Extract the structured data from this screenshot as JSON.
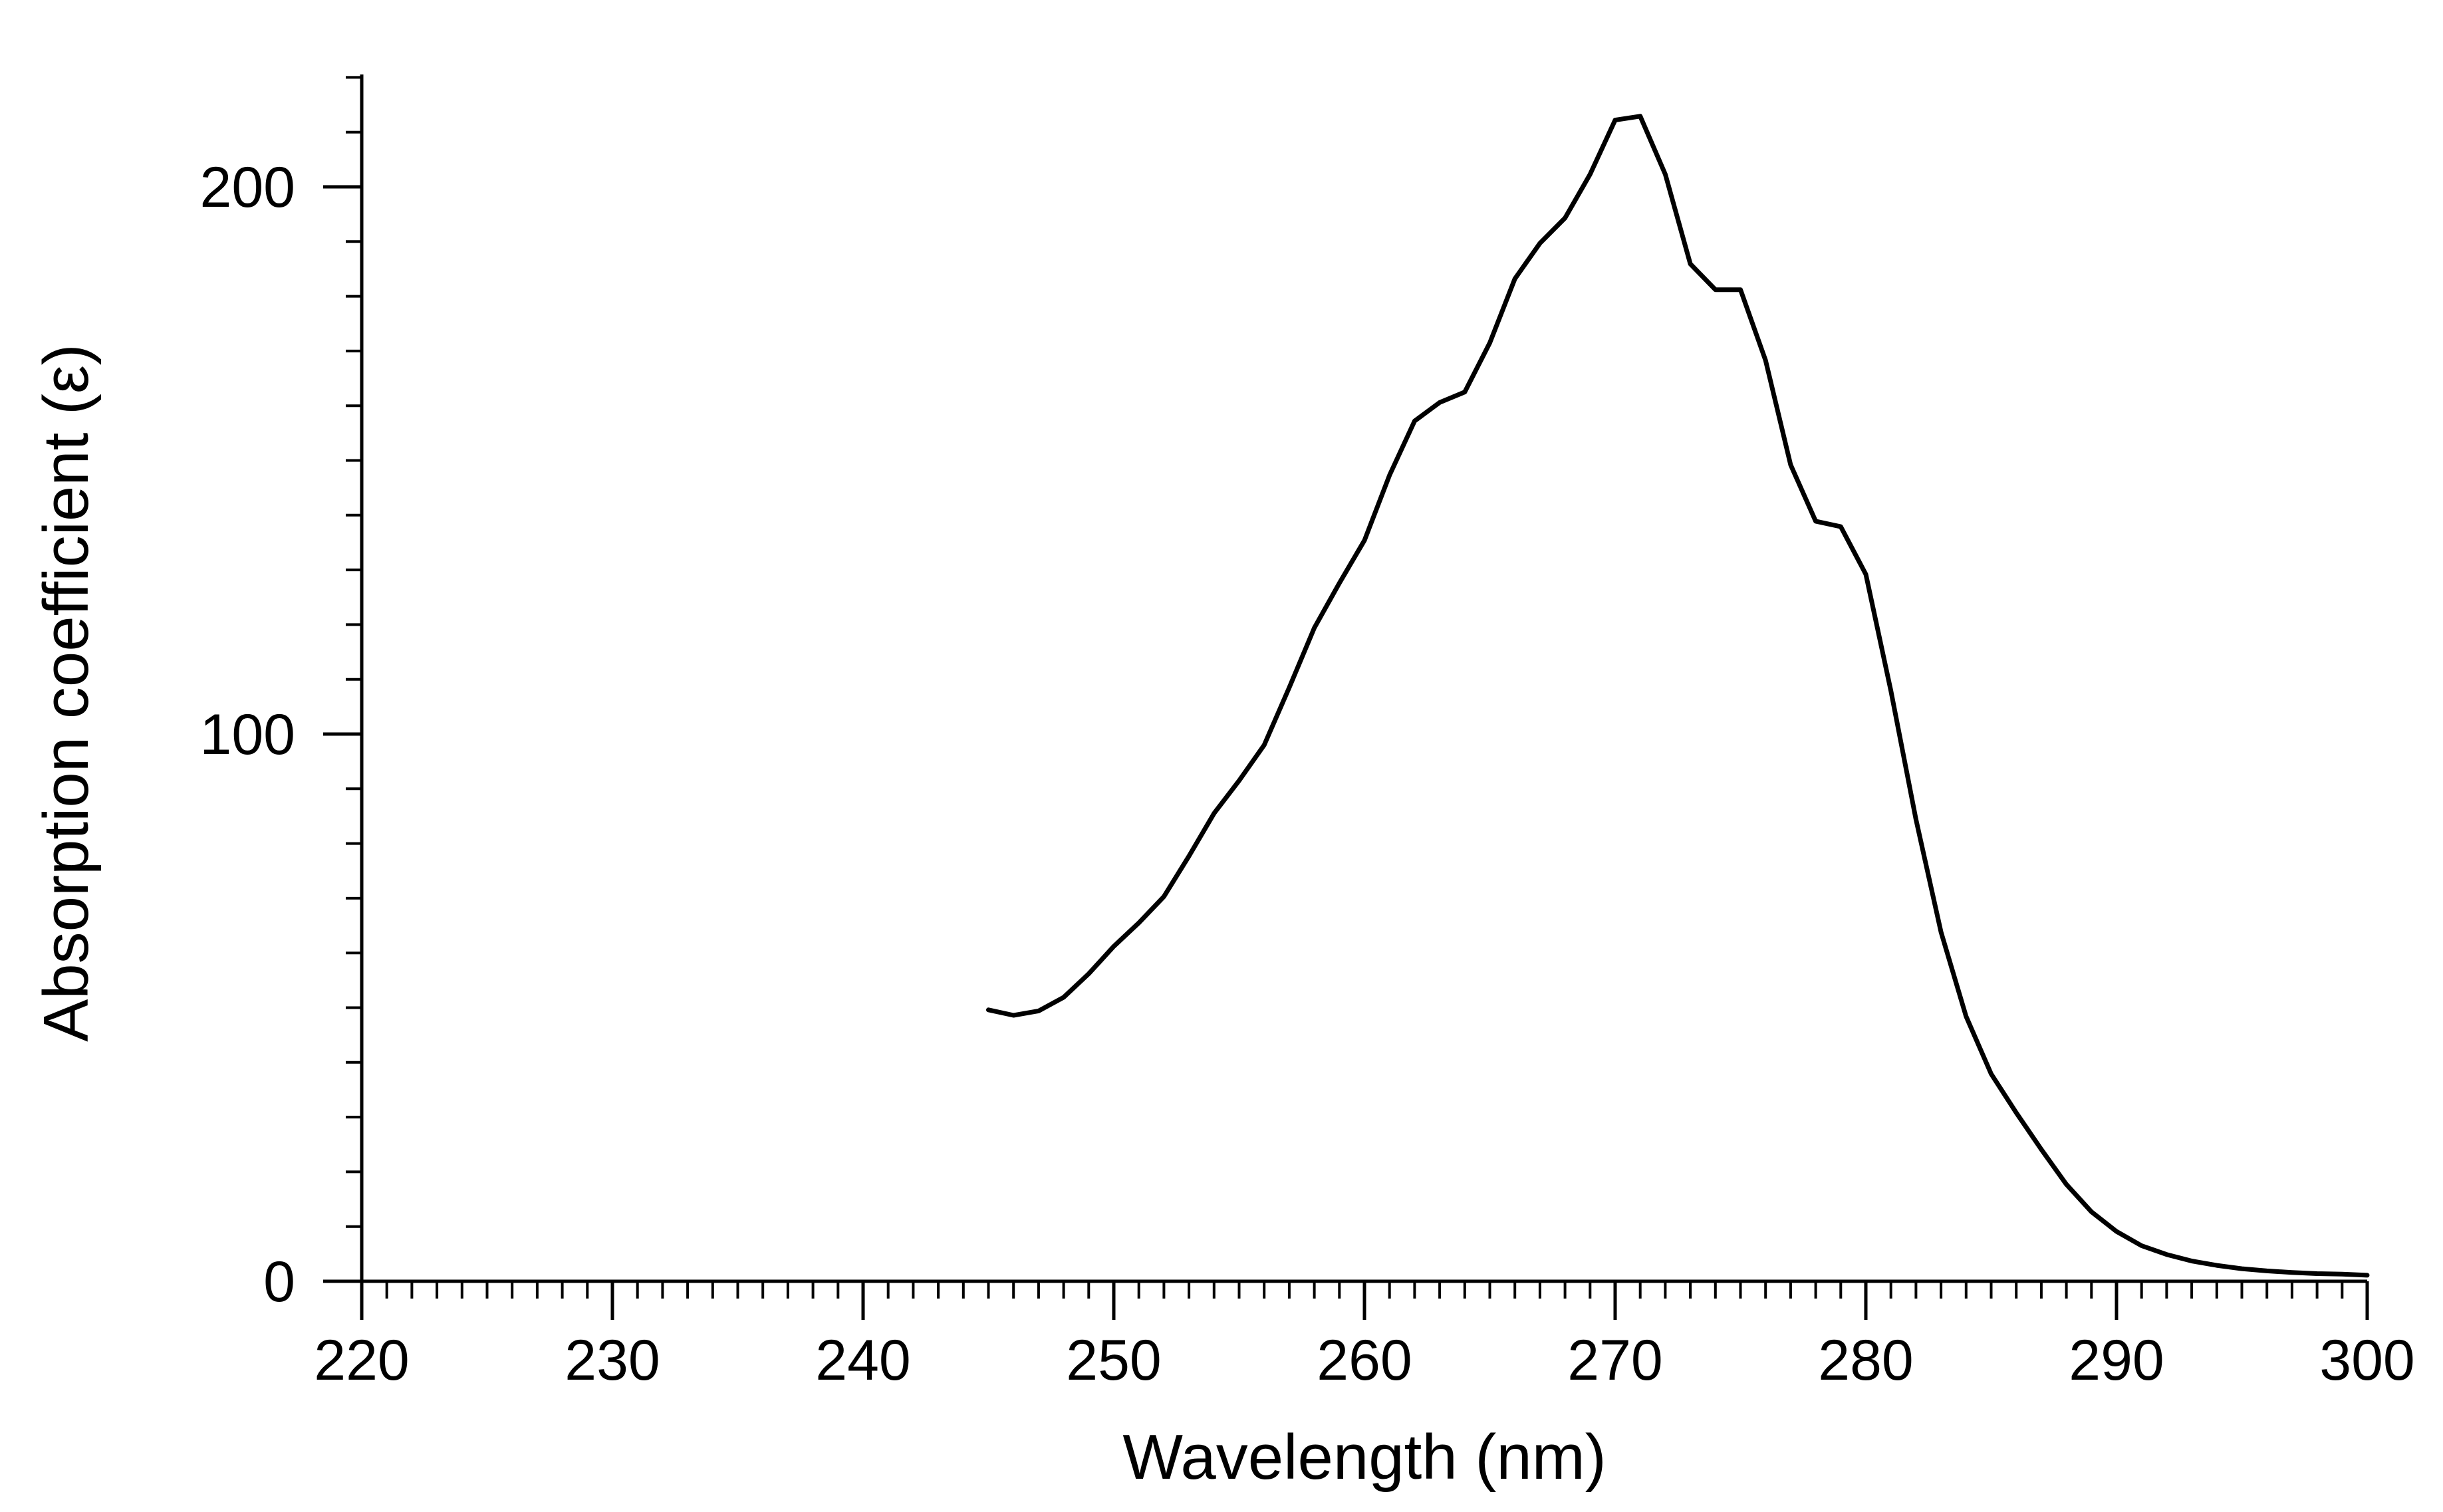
{
  "chart_data": {
    "type": "line",
    "title": "",
    "xlabel": "Wavelength (nm)",
    "ylabel": "Absorption coefficient (ε)",
    "xlim": [
      220,
      300
    ],
    "ylim": [
      0,
      220
    ],
    "x_ticks": [
      220,
      230,
      240,
      250,
      260,
      270,
      280,
      290,
      300
    ],
    "y_ticks": [
      0,
      100,
      200
    ],
    "x_minor_step": 1,
    "y_minor_step": 10,
    "grid": false,
    "legend": "none",
    "line_color": "#000000",
    "series": [
      {
        "x": [
          245,
          246,
          247,
          248,
          249,
          250,
          251,
          252,
          253,
          254,
          255,
          256,
          257,
          258,
          259,
          260,
          261,
          262,
          263,
          264,
          265,
          266,
          267,
          268,
          269,
          270,
          271,
          272,
          273,
          274,
          275,
          276,
          277,
          278,
          279,
          280,
          281,
          282,
          283,
          284,
          285,
          286,
          287,
          288,
          289,
          290,
          291,
          292,
          293,
          294,
          295,
          296,
          297,
          298,
          299,
          300
        ],
        "y": [
          49.6,
          48.6,
          49.4,
          51.9,
          56.2,
          61.2,
          65.5,
          70.3,
          77.7,
          85.5,
          91.5,
          98.0,
          108.5,
          119.4,
          127.6,
          135.4,
          147.3,
          157.2,
          160.6,
          162.5,
          171.5,
          183.2,
          189.7,
          194.3,
          202.3,
          212.2,
          212.9,
          202.3,
          185.9,
          181.2,
          181.2,
          168.3,
          149.2,
          138.9,
          137.9,
          129.2,
          107.9,
          84.4,
          63.8,
          48.4,
          37.9,
          30.8,
          24.1,
          17.7,
          12.7,
          9.1,
          6.5,
          4.9,
          3.7,
          2.9,
          2.3,
          1.9,
          1.6,
          1.4,
          1.3,
          1.1
        ]
      }
    ]
  }
}
